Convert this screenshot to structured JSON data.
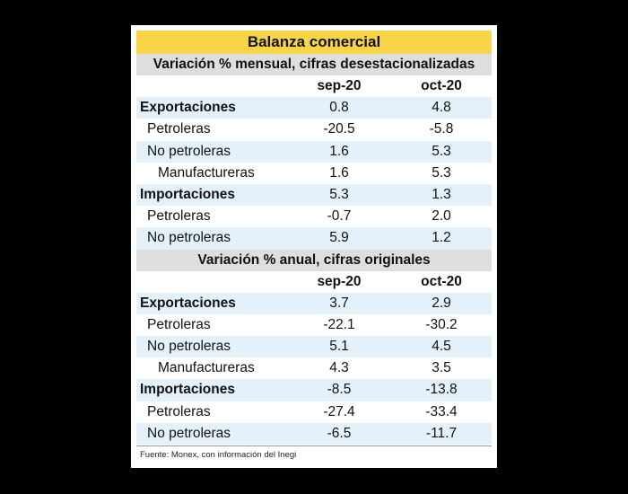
{
  "title": "Balanza comercial",
  "sections": [
    {
      "heading": "Variación % mensual, cifras desestacionalizadas",
      "col1": "sep-20",
      "col2": "oct-20",
      "rows": [
        {
          "label": "Exportaciones",
          "v1": "0.8",
          "v2": "4.8"
        },
        {
          "label": "Petroleras",
          "v1": "-20.5",
          "v2": "-5.8"
        },
        {
          "label": "No petroleras",
          "v1": "1.6",
          "v2": "5.3"
        },
        {
          "label": "Manufactureras",
          "v1": "1.6",
          "v2": "5.3"
        },
        {
          "label": "Importaciones",
          "v1": "5.3",
          "v2": "1.3"
        },
        {
          "label": "Petroleras",
          "v1": "-0.7",
          "v2": "2.0"
        },
        {
          "label": "No petroleras",
          "v1": "5.9",
          "v2": "1.2"
        }
      ]
    },
    {
      "heading": "Variación % anual, cifras originales",
      "col1": "sep-20",
      "col2": "oct-20",
      "rows": [
        {
          "label": "Exportaciones",
          "v1": "3.7",
          "v2": "2.9"
        },
        {
          "label": "Petroleras",
          "v1": "-22.1",
          "v2": "-30.2"
        },
        {
          "label": "No petroleras",
          "v1": "5.1",
          "v2": "4.5"
        },
        {
          "label": "Manufactureras",
          "v1": "4.3",
          "v2": "3.5"
        },
        {
          "label": "Importaciones",
          "v1": "-8.5",
          "v2": "-13.8"
        },
        {
          "label": "Petroleras",
          "v1": "-27.4",
          "v2": "-33.4"
        },
        {
          "label": "No petroleras",
          "v1": "-6.5",
          "v2": "-11.7"
        }
      ]
    }
  ],
  "source": "Fuente: Monex, con información del Inegi"
}
